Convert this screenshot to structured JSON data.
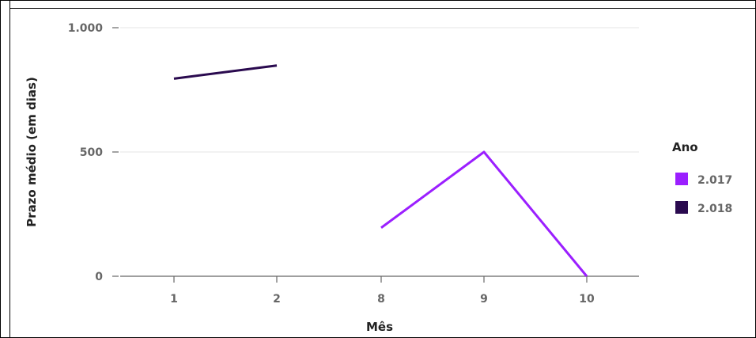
{
  "chart_data": {
    "type": "line",
    "categories": [
      "1",
      "2",
      "8",
      "9",
      "10"
    ],
    "xlabel": "Mês",
    "ylabel": "Prazo médio (em dias)",
    "yticks": [
      {
        "value": 0,
        "label": "0"
      },
      {
        "value": 500,
        "label": "500"
      },
      {
        "value": 1000,
        "label": "1.000"
      }
    ],
    "ylim": [
      0,
      1000
    ],
    "grid": true,
    "legend": {
      "title": "Ano",
      "placement": "right"
    },
    "series": [
      {
        "name": "2.017",
        "color": "#9b1fff",
        "values": [
          null,
          null,
          195,
          500,
          0
        ]
      },
      {
        "name": "2.018",
        "color": "#2a0a4f",
        "values": [
          795,
          848,
          null,
          null,
          null
        ]
      }
    ]
  }
}
